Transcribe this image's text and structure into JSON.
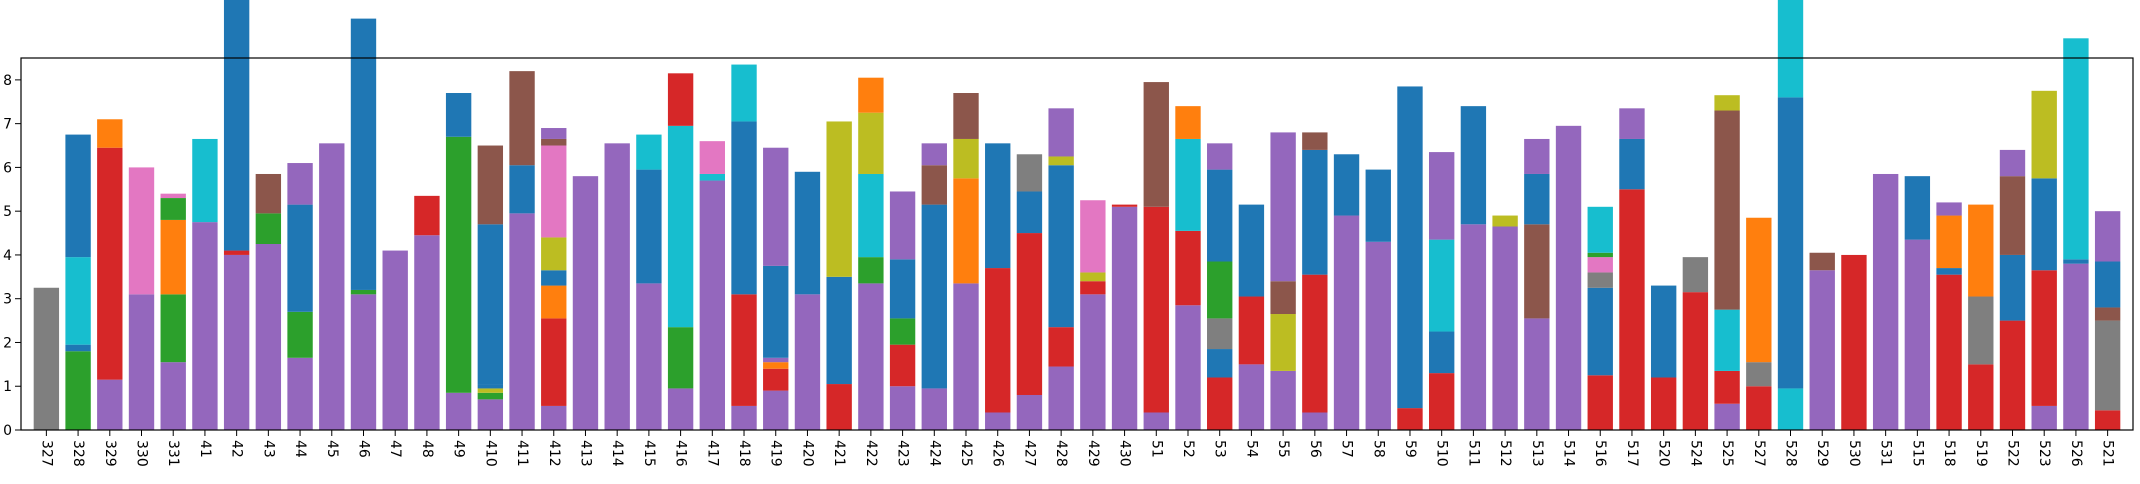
{
  "chart_data": {
    "type": "bar",
    "stacked": true,
    "title": "",
    "xlabel": "",
    "ylabel": "",
    "ylim": [
      0,
      8.5
    ],
    "yticks": [
      0,
      1,
      2,
      3,
      4,
      5,
      6,
      7,
      8
    ],
    "categories": [
      "327",
      "328",
      "329",
      "330",
      "331",
      "41",
      "42",
      "43",
      "44",
      "45",
      "46",
      "47",
      "48",
      "49",
      "410",
      "411",
      "412",
      "413",
      "414",
      "415",
      "416",
      "417",
      "418",
      "419",
      "420",
      "421",
      "422",
      "423",
      "424",
      "425",
      "426",
      "427",
      "428",
      "429",
      "430",
      "51",
      "52",
      "53",
      "54",
      "55",
      "56",
      "57",
      "58",
      "59",
      "510",
      "511",
      "512",
      "513",
      "514",
      "516",
      "517",
      "520",
      "524",
      "525",
      "527",
      "528",
      "529",
      "530",
      "531",
      "515",
      "518",
      "519",
      "522",
      "523",
      "526",
      "521"
    ],
    "colors": {
      "purple": "#9467bd",
      "blue": "#1f77b4",
      "orange": "#ff7f0e",
      "green": "#2ca02c",
      "red": "#d62728",
      "brown": "#8c564b",
      "pink": "#e377c2",
      "gray": "#7f7f7f",
      "olive": "#bcbd22",
      "cyan": "#17becf"
    },
    "stacks": [
      [
        [
          "gray",
          3.25
        ]
      ],
      [
        [
          "green",
          1.8
        ],
        [
          "blue",
          0.15
        ],
        [
          "cyan",
          2.0
        ],
        [
          "blue",
          2.8
        ]
      ],
      [
        [
          "purple",
          1.15
        ],
        [
          "red",
          5.3
        ],
        [
          "orange",
          0.65
        ]
      ],
      [
        [
          "purple",
          3.1
        ],
        [
          "pink",
          2.9
        ]
      ],
      [
        [
          "purple",
          1.55
        ],
        [
          "green",
          1.55
        ],
        [
          "orange",
          1.7
        ],
        [
          "green",
          0.5
        ],
        [
          "pink",
          0.1
        ]
      ],
      [
        [
          "purple",
          4.75
        ],
        [
          "cyan",
          1.9
        ]
      ],
      [
        [
          "purple",
          4.0
        ],
        [
          "red",
          0.1
        ],
        [
          "blue",
          6.95
        ]
      ],
      [
        [
          "purple",
          4.25
        ],
        [
          "green",
          0.7
        ],
        [
          "brown",
          0.9
        ]
      ],
      [
        [
          "purple",
          1.65
        ],
        [
          "green",
          1.05
        ],
        [
          "blue",
          2.45
        ],
        [
          "purple",
          0.95
        ]
      ],
      [
        [
          "purple",
          6.55
        ]
      ],
      [
        [
          "purple",
          3.1
        ],
        [
          "green",
          0.1
        ],
        [
          "blue",
          6.2
        ]
      ],
      [
        [
          "purple",
          4.1
        ]
      ],
      [
        [
          "purple",
          4.45
        ],
        [
          "red",
          0.9
        ]
      ],
      [
        [
          "purple",
          0.85
        ],
        [
          "green",
          5.85
        ],
        [
          "blue",
          1.0
        ]
      ],
      [
        [
          "purple",
          0.7
        ],
        [
          "green",
          0.15
        ],
        [
          "olive",
          0.1
        ],
        [
          "blue",
          0.1
        ],
        [
          "blue",
          3.65
        ],
        [
          "brown",
          1.8
        ]
      ],
      [
        [
          "purple",
          4.95
        ],
        [
          "blue",
          1.1
        ],
        [
          "brown",
          2.15
        ]
      ],
      [
        [
          "purple",
          0.55
        ],
        [
          "red",
          2.0
        ],
        [
          "orange",
          0.75
        ],
        [
          "blue",
          0.35
        ],
        [
          "olive",
          0.75
        ],
        [
          "pink",
          2.1
        ],
        [
          "brown",
          0.15
        ],
        [
          "purple",
          0.25
        ]
      ],
      [
        [
          "purple",
          5.8
        ]
      ],
      [
        [
          "purple",
          6.55
        ]
      ],
      [
        [
          "purple",
          3.35
        ],
        [
          "blue",
          2.6
        ],
        [
          "cyan",
          0.8
        ]
      ],
      [
        [
          "purple",
          0.95
        ],
        [
          "green",
          1.4
        ],
        [
          "cyan",
          4.6
        ],
        [
          "red",
          1.2
        ]
      ],
      [
        [
          "purple",
          5.7
        ],
        [
          "cyan",
          0.15
        ],
        [
          "pink",
          0.75
        ]
      ],
      [
        [
          "purple",
          0.55
        ],
        [
          "red",
          2.55
        ],
        [
          "blue",
          3.95
        ],
        [
          "cyan",
          1.3
        ]
      ],
      [
        [
          "purple",
          0.9
        ],
        [
          "red",
          0.5
        ],
        [
          "orange",
          0.15
        ],
        [
          "purple",
          0.1
        ],
        [
          "blue",
          2.1
        ],
        [
          "purple",
          2.7
        ]
      ],
      [
        [
          "purple",
          3.1
        ],
        [
          "blue",
          2.8
        ]
      ],
      [
        [
          "red",
          1.05
        ],
        [
          "blue",
          2.45
        ],
        [
          "olive",
          3.55
        ]
      ],
      [
        [
          "purple",
          3.35
        ],
        [
          "green",
          0.6
        ],
        [
          "cyan",
          1.9
        ],
        [
          "olive",
          1.4
        ],
        [
          "orange",
          0.8
        ]
      ],
      [
        [
          "purple",
          1.0
        ],
        [
          "red",
          0.95
        ],
        [
          "green",
          0.6
        ],
        [
          "blue",
          1.35
        ],
        [
          "purple",
          1.55
        ]
      ],
      [
        [
          "purple",
          0.95
        ],
        [
          "blue",
          4.2
        ],
        [
          "brown",
          0.9
        ],
        [
          "purple",
          0.5
        ]
      ],
      [
        [
          "purple",
          3.35
        ],
        [
          "orange",
          2.4
        ],
        [
          "olive",
          0.9
        ],
        [
          "brown",
          1.05
        ]
      ],
      [
        [
          "purple",
          0.4
        ],
        [
          "red",
          3.3
        ],
        [
          "blue",
          2.85
        ]
      ],
      [
        [
          "purple",
          0.8
        ],
        [
          "red",
          3.7
        ],
        [
          "blue",
          0.95
        ],
        [
          "gray",
          0.85
        ]
      ],
      [
        [
          "purple",
          1.45
        ],
        [
          "red",
          0.9
        ],
        [
          "blue",
          3.7
        ],
        [
          "olive",
          0.2
        ],
        [
          "purple",
          1.1
        ]
      ],
      [
        [
          "purple",
          3.1
        ],
        [
          "red",
          0.3
        ],
        [
          "olive",
          0.2
        ],
        [
          "pink",
          1.65
        ]
      ],
      [
        [
          "purple",
          5.1
        ],
        [
          "red",
          0.05
        ]
      ],
      [
        [
          "purple",
          0.4
        ],
        [
          "red",
          4.7
        ],
        [
          "brown",
          2.85
        ]
      ],
      [
        [
          "purple",
          2.85
        ],
        [
          "red",
          1.7
        ],
        [
          "cyan",
          2.1
        ],
        [
          "orange",
          0.75
        ]
      ],
      [
        [
          "red",
          1.2
        ],
        [
          "blue",
          0.65
        ],
        [
          "gray",
          0.7
        ],
        [
          "green",
          1.3
        ],
        [
          "blue",
          2.1
        ],
        [
          "purple",
          0.6
        ]
      ],
      [
        [
          "purple",
          1.5
        ],
        [
          "red",
          1.55
        ],
        [
          "blue",
          2.1
        ]
      ],
      [
        [
          "purple",
          1.35
        ],
        [
          "olive",
          1.3
        ],
        [
          "brown",
          0.75
        ],
        [
          "purple",
          3.4
        ]
      ],
      [
        [
          "purple",
          0.4
        ],
        [
          "red",
          3.15
        ],
        [
          "blue",
          2.85
        ],
        [
          "brown",
          0.4
        ]
      ],
      [
        [
          "purple",
          4.9
        ],
        [
          "blue",
          1.4
        ]
      ],
      [
        [
          "purple",
          4.3
        ],
        [
          "blue",
          1.65
        ]
      ],
      [
        [
          "red",
          0.5
        ],
        [
          "blue",
          7.35
        ]
      ],
      [
        [
          "red",
          1.3
        ],
        [
          "blue",
          0.95
        ],
        [
          "cyan",
          2.1
        ],
        [
          "purple",
          2.0
        ]
      ],
      [
        [
          "purple",
          4.7
        ],
        [
          "blue",
          2.7
        ]
      ],
      [
        [
          "purple",
          4.65
        ],
        [
          "olive",
          0.25
        ]
      ],
      [
        [
          "purple",
          2.55
        ],
        [
          "brown",
          2.15
        ],
        [
          "blue",
          1.15
        ],
        [
          "purple",
          0.8
        ]
      ],
      [
        [
          "purple",
          6.95
        ]
      ],
      [
        [
          "red",
          1.25
        ],
        [
          "blue",
          2.0
        ],
        [
          "gray",
          0.35
        ],
        [
          "pink",
          0.35
        ],
        [
          "green",
          0.1
        ],
        [
          "cyan",
          1.05
        ]
      ],
      [
        [
          "red",
          5.5
        ],
        [
          "blue",
          1.15
        ],
        [
          "purple",
          0.7
        ]
      ],
      [
        [
          "red",
          1.2
        ],
        [
          "blue",
          2.1
        ]
      ],
      [
        [
          "red",
          3.15
        ],
        [
          "gray",
          0.8
        ]
      ],
      [
        [
          "purple",
          0.6
        ],
        [
          "red",
          0.75
        ],
        [
          "cyan",
          1.4
        ],
        [
          "brown",
          4.55
        ],
        [
          "olive",
          0.35
        ]
      ],
      [
        [
          "red",
          1.0
        ],
        [
          "gray",
          0.55
        ],
        [
          "orange",
          3.3
        ]
      ],
      [
        [
          "cyan",
          0.95
        ],
        [
          "blue",
          6.65
        ],
        [
          "cyan",
          2.6
        ]
      ],
      [
        [
          "purple",
          3.65
        ],
        [
          "brown",
          0.4
        ]
      ],
      [
        [
          "red",
          4.0
        ]
      ],
      [
        [
          "purple",
          5.85
        ]
      ],
      [
        [
          "purple",
          4.35
        ],
        [
          "blue",
          1.45
        ]
      ],
      [
        [
          "red",
          3.55
        ],
        [
          "blue",
          0.15
        ],
        [
          "orange",
          1.2
        ],
        [
          "purple",
          0.3
        ]
      ],
      [
        [
          "red",
          1.5
        ],
        [
          "gray",
          1.55
        ],
        [
          "orange",
          2.1
        ]
      ],
      [
        [
          "red",
          2.5
        ],
        [
          "blue",
          1.5
        ],
        [
          "brown",
          1.8
        ],
        [
          "purple",
          0.6
        ]
      ],
      [
        [
          "purple",
          0.55
        ],
        [
          "red",
          3.1
        ],
        [
          "blue",
          2.1
        ],
        [
          "olive",
          2.0
        ]
      ],
      [
        [
          "purple",
          3.8
        ],
        [
          "blue",
          0.1
        ],
        [
          "cyan",
          5.05
        ]
      ],
      [
        [
          "red",
          0.45
        ],
        [
          "gray",
          2.05
        ],
        [
          "brown",
          0.3
        ],
        [
          "blue",
          1.05
        ],
        [
          "purple",
          1.15
        ]
      ]
    ]
  }
}
